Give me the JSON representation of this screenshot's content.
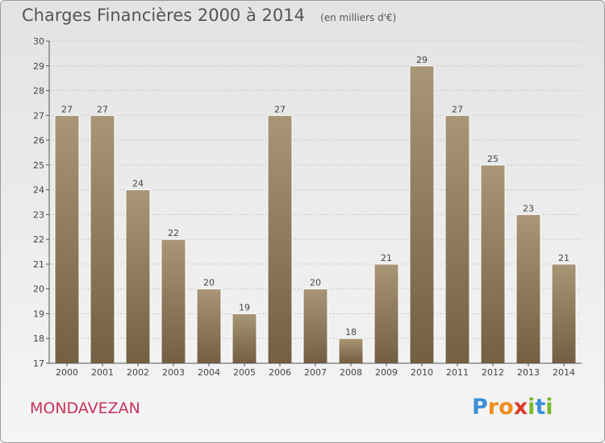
{
  "title": "Charges Financières 2000 à 2014",
  "subtitle": "(en milliers d'€)",
  "commune": "MONDAVEZAN",
  "logo": {
    "letters": [
      "P",
      "r",
      "o",
      "x",
      "i",
      "t",
      "i"
    ],
    "colors": [
      "#3b8fd6",
      "#f28c1e",
      "#f28c1e",
      "#d93a2b",
      "#7bb82d",
      "#3b8fd6",
      "#7bb82d"
    ]
  },
  "colors": {
    "bar_top": "#a89676",
    "bar_bottom": "#735f42",
    "axis": "#555555",
    "grid": "#c8c8c8",
    "text": "#444444"
  },
  "chart_data": {
    "type": "bar",
    "categories": [
      "2000",
      "2001",
      "2002",
      "2003",
      "2004",
      "2005",
      "2006",
      "2007",
      "2008",
      "2009",
      "2010",
      "2011",
      "2012",
      "2013",
      "2014"
    ],
    "values": [
      27,
      27,
      24,
      22,
      20,
      19,
      27,
      20,
      18,
      21,
      29,
      27,
      25,
      23,
      21
    ],
    "data_labels": [
      "27",
      "27",
      "24",
      "22",
      "20",
      "19",
      "27",
      "20",
      "18",
      "21",
      "29",
      "27",
      "25",
      "23",
      "21"
    ],
    "yticks": [
      "17",
      "18",
      "19",
      "20",
      "21",
      "22",
      "23",
      "24",
      "25",
      "26",
      "27",
      "28",
      "29",
      "30"
    ],
    "ylim": [
      17,
      30
    ],
    "grid": true,
    "title": "Charges Financières 2000 à 2014",
    "xlabel": "",
    "ylabel": ""
  }
}
